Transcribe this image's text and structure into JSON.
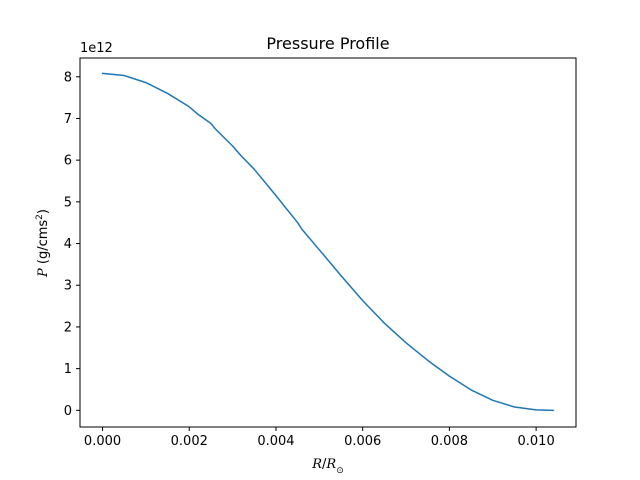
{
  "chart_data": {
    "type": "line",
    "title": "Pressure Profile",
    "xlabel": {
      "var": "R",
      "sep": "/",
      "var2": "R",
      "sub": "⊙"
    },
    "ylabel": {
      "var": "P",
      "open": " (g/cms",
      "sup": "2",
      "close": ")"
    },
    "offset_label": "1e12",
    "xlim": [
      -0.00052,
      0.01092
    ],
    "ylim": [
      -0.4,
      8.45
    ],
    "grid": false,
    "x_ticks": [
      0.0,
      0.002,
      0.004,
      0.006,
      0.008,
      0.01
    ],
    "x_tick_labels": [
      "0.000",
      "0.002",
      "0.004",
      "0.006",
      "0.008",
      "0.010"
    ],
    "y_ticks": [
      0,
      1,
      2,
      3,
      4,
      5,
      6,
      7,
      8
    ],
    "y_tick_labels": [
      "0",
      "1",
      "2",
      "3",
      "4",
      "5",
      "6",
      "7",
      "8"
    ],
    "series": [
      {
        "color": "#1f77b4",
        "x": [
          0.0,
          0.0005,
          0.001,
          0.0015,
          0.002,
          0.0022,
          0.0025,
          0.0026,
          0.003,
          0.0032,
          0.0035,
          0.004,
          0.0045,
          0.0046,
          0.005,
          0.0055,
          0.006,
          0.0065,
          0.007,
          0.0075,
          0.0076,
          0.008,
          0.0085,
          0.009,
          0.0095,
          0.01,
          0.0104
        ],
        "y": [
          8.08,
          8.03,
          7.86,
          7.6,
          7.28,
          7.1,
          6.88,
          6.75,
          6.34,
          6.1,
          5.78,
          5.15,
          4.5,
          4.34,
          3.85,
          3.23,
          2.63,
          2.09,
          1.62,
          1.2,
          1.12,
          0.82,
          0.49,
          0.24,
          0.08,
          0.01,
          0.0
        ]
      }
    ]
  }
}
